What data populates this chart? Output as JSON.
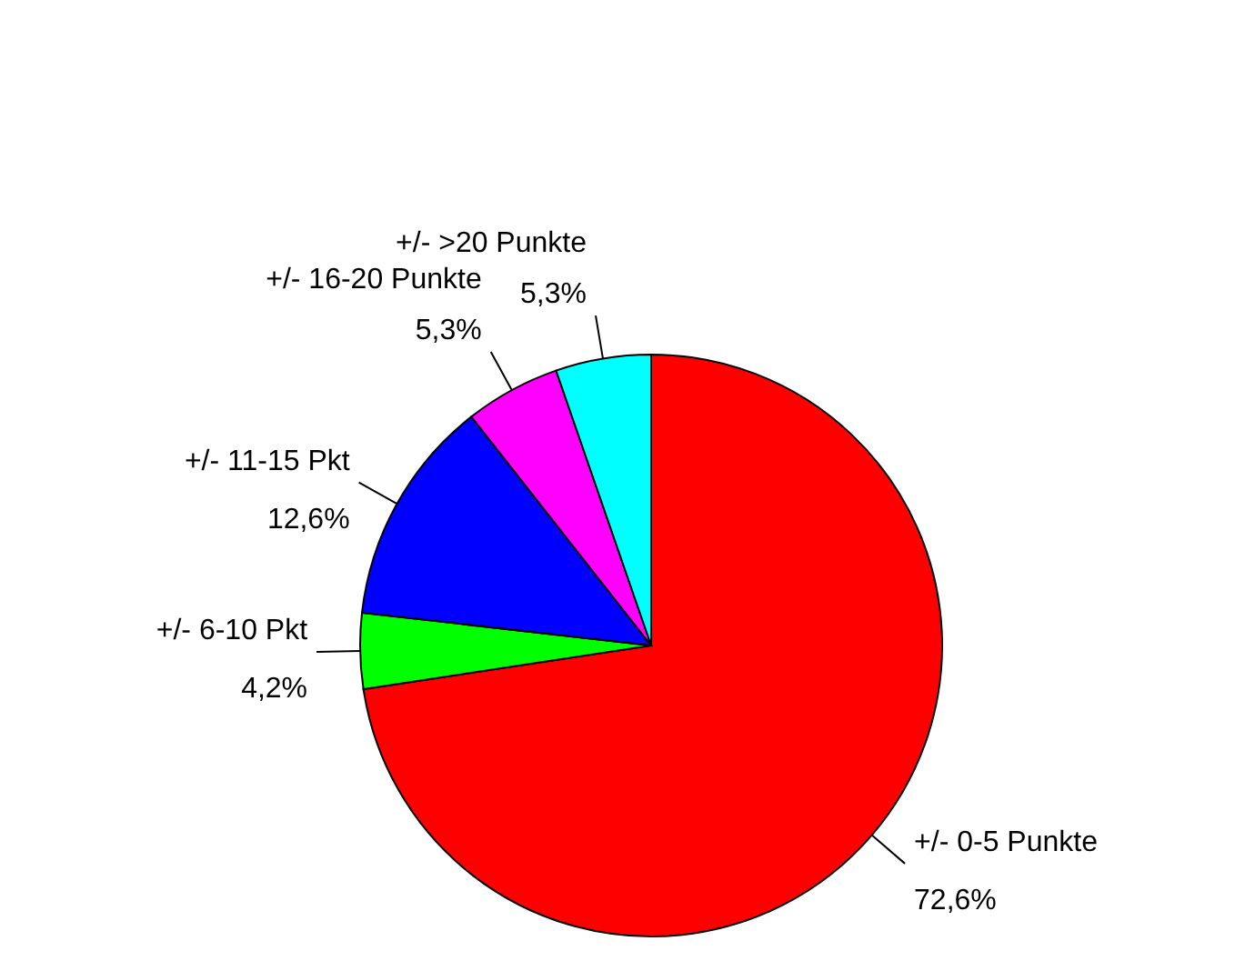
{
  "chart_data": {
    "type": "pie",
    "categories": [
      "+/- 0-5 Punkte",
      "+/- 6-10 Pkt",
      "+/- 11-15 Pkt",
      "+/- 16-20 Punkte",
      "+/- >20 Punkte"
    ],
    "values": [
      72.6,
      4.2,
      12.6,
      5.3,
      5.3
    ],
    "colors": [
      "#ff0000",
      "#00ff00",
      "#0000ff",
      "#ff00ff",
      "#00ffff"
    ],
    "value_labels": [
      "72,6%",
      "4,2%",
      "12,6%",
      "5,3%",
      "5,3%"
    ],
    "legend": false
  }
}
